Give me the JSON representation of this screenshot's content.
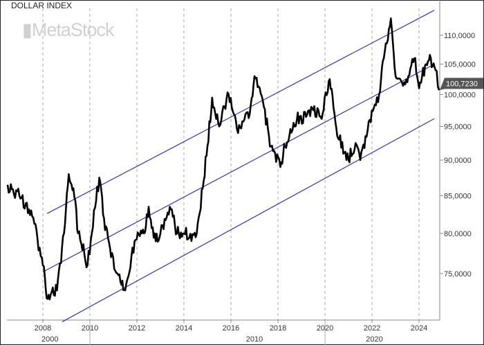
{
  "chart_data": {
    "type": "line",
    "title": "DOLLAR INDEX",
    "watermark": "MetaStock",
    "y_scale": "log",
    "ylim": [
      69.6,
      116.4
    ],
    "xlim": [
      2006.47,
      2024.88
    ],
    "grid": "vertical dashed at year ticks",
    "x_ticks": [
      "2008",
      "2010",
      "2012",
      "2014",
      "2016",
      "2018",
      "2020",
      "2022",
      "2024"
    ],
    "x_tick_values": [
      2008,
      2010,
      2012,
      2014,
      2016,
      2018,
      2020,
      2022,
      2024
    ],
    "decade_labels": [
      {
        "label": "2000",
        "x": 2008.3
      },
      {
        "label": "2010",
        "x": 2017
      },
      {
        "label": "2020",
        "x": 2022.1
      }
    ],
    "decade_dividers": [
      2010,
      2020
    ],
    "y_ticks": [
      "75,0000",
      "80,0000",
      "85,0000",
      "90,0000",
      "95,0000",
      "100,0000",
      "105,0000",
      "110,0000"
    ],
    "y_tick_values": [
      75,
      80,
      85,
      90,
      95,
      100,
      105,
      110
    ],
    "last_value_label": "100,7230",
    "last_value": 100.723,
    "colors": {
      "price": "#000000",
      "channel": "#3333bb",
      "last_label_bg": "#555555"
    },
    "series": [
      {
        "values": [
          [
            2006.5,
            86.5
          ],
          [
            2007.0,
            85
          ],
          [
            2007.5,
            83
          ],
          [
            2008.0,
            76
          ],
          [
            2008.2,
            72
          ],
          [
            2008.6,
            73
          ],
          [
            2008.9,
            80
          ],
          [
            2009.1,
            88
          ],
          [
            2009.3,
            86
          ],
          [
            2009.5,
            80
          ],
          [
            2009.9,
            76
          ],
          [
            2010.4,
            87.5
          ],
          [
            2010.6,
            82
          ],
          [
            2010.9,
            77
          ],
          [
            2011.3,
            74
          ],
          [
            2011.5,
            73
          ],
          [
            2011.9,
            79
          ],
          [
            2012.3,
            80
          ],
          [
            2012.5,
            83.5
          ],
          [
            2012.8,
            79
          ],
          [
            2013.0,
            80
          ],
          [
            2013.4,
            83.5
          ],
          [
            2013.7,
            80
          ],
          [
            2014.0,
            80
          ],
          [
            2014.5,
            79.5
          ],
          [
            2014.8,
            86
          ],
          [
            2015.0,
            92
          ],
          [
            2015.2,
            99.5
          ],
          [
            2015.5,
            95
          ],
          [
            2015.9,
            100
          ],
          [
            2016.3,
            94
          ],
          [
            2016.8,
            97
          ],
          [
            2017.0,
            103
          ],
          [
            2017.4,
            98
          ],
          [
            2017.7,
            92
          ],
          [
            2018.1,
            89
          ],
          [
            2018.3,
            92
          ],
          [
            2018.8,
            96
          ],
          [
            2019.5,
            97.5
          ],
          [
            2019.9,
            97
          ],
          [
            2020.2,
            102.5
          ],
          [
            2020.4,
            97
          ],
          [
            2020.6,
            93
          ],
          [
            2021.0,
            90
          ],
          [
            2021.3,
            92.5
          ],
          [
            2021.5,
            90
          ],
          [
            2021.9,
            96
          ],
          [
            2022.3,
            100
          ],
          [
            2022.5,
            106
          ],
          [
            2022.8,
            113
          ],
          [
            2023.0,
            103
          ],
          [
            2023.5,
            102
          ],
          [
            2023.8,
            106
          ],
          [
            2024.0,
            101
          ],
          [
            2024.3,
            105
          ],
          [
            2024.5,
            106
          ],
          [
            2024.7,
            104
          ],
          [
            2024.85,
            100.7
          ]
        ]
      }
    ],
    "channel_lines": [
      {
        "name": "upper",
        "from": [
          2008.18,
          82.6
        ],
        "to": [
          2024.65,
          114.5
        ]
      },
      {
        "name": "middle",
        "from": [
          2008.0,
          75.2
        ],
        "to": [
          2024.65,
          105
        ]
      },
      {
        "name": "lower",
        "from": [
          2008.82,
          69.4
        ],
        "to": [
          2024.65,
          96.2
        ]
      }
    ]
  }
}
